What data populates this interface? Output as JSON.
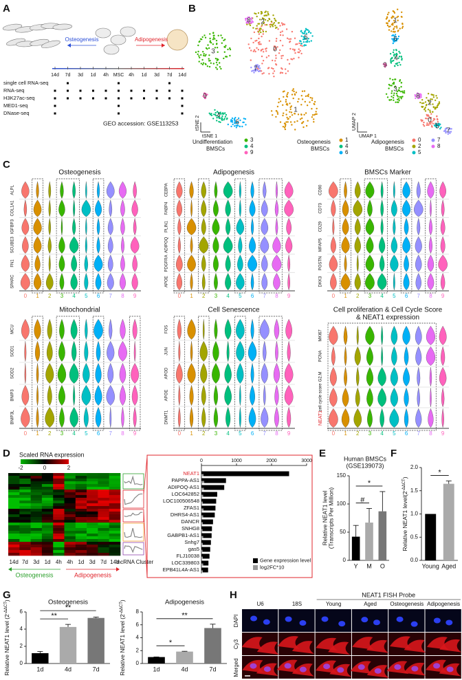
{
  "panel_labels": [
    "A",
    "B",
    "C",
    "D",
    "E",
    "F",
    "G",
    "H"
  ],
  "panel_a": {
    "osteogenesis": "Osteogenesis",
    "adipogenesis": "Adipogenesis",
    "timepoints": [
      "14d",
      "7d",
      "3d",
      "1d",
      "4h",
      "MSC",
      "4h",
      "1d",
      "3d",
      "7d",
      "14d"
    ],
    "assays": [
      "single cell RNA-seq",
      "RNA-seq",
      "H3K27ac-seq",
      "MED1-seq",
      "DNase-seq"
    ],
    "geo": "GEO accession: GSE113253"
  },
  "panel_b": {
    "tsne_x": "tSNE 1",
    "tsne_y": "tSNE 2",
    "umap_x": "UMAP 1",
    "umap_y": "UMAP 2",
    "clusters": [
      "0",
      "1",
      "2",
      "3",
      "4",
      "5",
      "6",
      "7",
      "8",
      "9"
    ],
    "colors": [
      "#f8766d",
      "#d89000",
      "#a3a500",
      "#39b600",
      "#00bf7d",
      "#00bfc4",
      "#00b0f6",
      "#9590ff",
      "#e76bf3",
      "#ff62bc"
    ],
    "groups": [
      {
        "name": "Undifferentiation",
        "sub": "BMSCs",
        "clusters": [
          "3",
          "4",
          "9"
        ]
      },
      {
        "name": "Osteogenesis",
        "sub": "BMSCs",
        "clusters": [
          "1",
          "4",
          "6"
        ]
      },
      {
        "name": "Adipogenesis",
        "sub": "BMSCs",
        "clusters": [
          "0",
          "2",
          "5",
          "7",
          "8"
        ]
      }
    ]
  },
  "panel_c": {
    "plots": [
      {
        "title": [
          "Osteogenesis"
        ],
        "genes": [
          "SPARC",
          "FN1",
          "SCUBE3",
          "IGFBP3",
          "COL1A1",
          "ALPL"
        ]
      },
      {
        "title": [
          "Adipogenesis"
        ],
        "genes": [
          "APOE",
          "PDGFRA",
          "ADIPOQ",
          "PLIN1",
          "FABP4",
          "CEBPA"
        ]
      },
      {
        "title": [
          "BMSCs Marker"
        ],
        "genes": [
          "DKK3",
          "POSTN",
          "MFAP5",
          "CD29",
          "CD73",
          "CD90"
        ]
      },
      {
        "title": [
          "Mitochondrial"
        ],
        "genes": [
          "BNIP3L",
          "BNIP3",
          "SOD2",
          "SOD1",
          "MCU"
        ]
      },
      {
        "title": [
          "Cell Senescence"
        ],
        "genes": [
          "DNMT1",
          "APOE",
          "APOD",
          "JUN",
          "FOS"
        ]
      },
      {
        "title": [
          "Cell proliferation & Cell Cycle Score",
          "& NEAT1 expression"
        ],
        "genes": [
          "NEAT1",
          "cell cycle score",
          "G2.M",
          "PCNA",
          "MKI67"
        ]
      }
    ]
  },
  "panel_d": {
    "colorbar_title": "Scaled RNA expression",
    "colorbar_ticks": [
      -2,
      0,
      2
    ],
    "timepoints": [
      "14d",
      "7d",
      "3d",
      "1d",
      "4h",
      "4h",
      "1d",
      "3d",
      "7d",
      "14d"
    ],
    "cluster_label": "lncRNA Cluster",
    "osteogenesis": "Osteogenesis",
    "adipogenesis": "Adipogenesis"
  },
  "panel_h": {
    "probe": "NEAT1 FISH Probe",
    "columns": [
      "U6",
      "18S",
      "Young",
      "Aged",
      "Osteogenesis",
      "Adipogenesis"
    ],
    "rows": [
      "DAPI",
      "Cy3",
      "Merged"
    ]
  },
  "chart_data": [
    {
      "type": "bar",
      "orientation": "horizontal",
      "categories": [
        "NEAT1",
        "PAPPA-AS1",
        "ADIPOQ-AS1",
        "LOC642852",
        "LOC100506548",
        "ZFAS1",
        "DHRS4-AS1",
        "DANCR",
        "SNHG8",
        "GABPB1-AS1",
        "Snhg7",
        "gas5",
        "FLJ10038",
        "LOC339803",
        "EPB41L4A-AS1"
      ],
      "series": [
        {
          "name": "Gene expression level",
          "color": "#000000",
          "values": [
            2500,
            700,
            650,
            450,
            420,
            400,
            380,
            330,
            300,
            290,
            270,
            250,
            230,
            200,
            190
          ]
        },
        {
          "name": "log2FC*10",
          "color": "#999999",
          "values": [
            60,
            80,
            70,
            50,
            40,
            60,
            50,
            40,
            30,
            50,
            40,
            30,
            40,
            50,
            40
          ]
        }
      ],
      "xlim": [
        0,
        3000
      ],
      "xticks": [
        0,
        1000,
        2000,
        3000
      ]
    },
    {
      "type": "bar",
      "title": [
        "Human BMSCs",
        "(GSE139073)"
      ],
      "categories": [
        "Y",
        "M",
        "O"
      ],
      "values": [
        42,
        67,
        87
      ],
      "errors": [
        20,
        25,
        35
      ],
      "colors": [
        "#000000",
        "#aaaaaa",
        "#777777"
      ],
      "ylim": [
        0,
        150
      ],
      "yticks": [
        0,
        50,
        100,
        150
      ],
      "ylabel": [
        "Relative NEAT1 level",
        "(Transcripts Per Million)"
      ],
      "annotations": [
        {
          "text": "#",
          "from": 0,
          "to": 1
        },
        {
          "text": "*",
          "from": 0,
          "to": 2
        }
      ]
    },
    {
      "type": "bar",
      "categories": [
        "Young",
        "Aged"
      ],
      "values": [
        1.0,
        1.65
      ],
      "errors": [
        0,
        0.06
      ],
      "colors": [
        "#000000",
        "#aaaaaa"
      ],
      "ylim": [
        0,
        2
      ],
      "yticks": [
        {
          "value": 0,
          "label": "0.0"
        },
        {
          "value": 0.5,
          "label": "0.5"
        },
        {
          "value": 1,
          "label": "1.0"
        },
        {
          "value": 1.5,
          "label": "1.5"
        },
        {
          "value": 2,
          "label": "2.0"
        }
      ],
      "ylabel_parts": [
        "Relative NEAT1 level(2",
        "-ΔΔCT",
        ")"
      ],
      "annotations": [
        {
          "text": "*",
          "from": 0,
          "to": 1
        }
      ]
    },
    {
      "type": "bar",
      "title": "Osteogenesis",
      "categories": [
        "1d",
        "4d",
        "7d"
      ],
      "values": [
        1.2,
        4.25,
        5.3
      ],
      "errors": [
        0.2,
        0.3,
        0.1
      ],
      "colors": [
        "#000000",
        "#aaaaaa",
        "#777777"
      ],
      "ylim": [
        0,
        6
      ],
      "yticks": [
        0,
        2,
        4,
        6
      ],
      "ylabel_parts": [
        "Relative NEAT1 level (2",
        "-ΔΔCT",
        ")"
      ],
      "annotations": [
        {
          "text": "**",
          "from": 0,
          "to": 1
        },
        {
          "text": "**",
          "from": 0,
          "to": 2
        }
      ]
    },
    {
      "type": "bar",
      "title": "Adipogenesis",
      "categories": [
        "1d",
        "4d",
        "7d"
      ],
      "values": [
        1.0,
        1.85,
        5.5
      ],
      "errors": [
        0.02,
        0.05,
        0.6
      ],
      "colors": [
        "#000000",
        "#aaaaaa",
        "#777777"
      ],
      "ylim": [
        0,
        8
      ],
      "yticks": [
        0,
        2,
        4,
        6,
        8
      ],
      "ylabel_parts": [
        "Relative NEAT1 level (2",
        "-ΔΔCT",
        ")"
      ],
      "annotations": [
        {
          "text": "*",
          "from": 0,
          "to": 1
        },
        {
          "text": "**",
          "from": 0,
          "to": 2
        }
      ]
    }
  ]
}
